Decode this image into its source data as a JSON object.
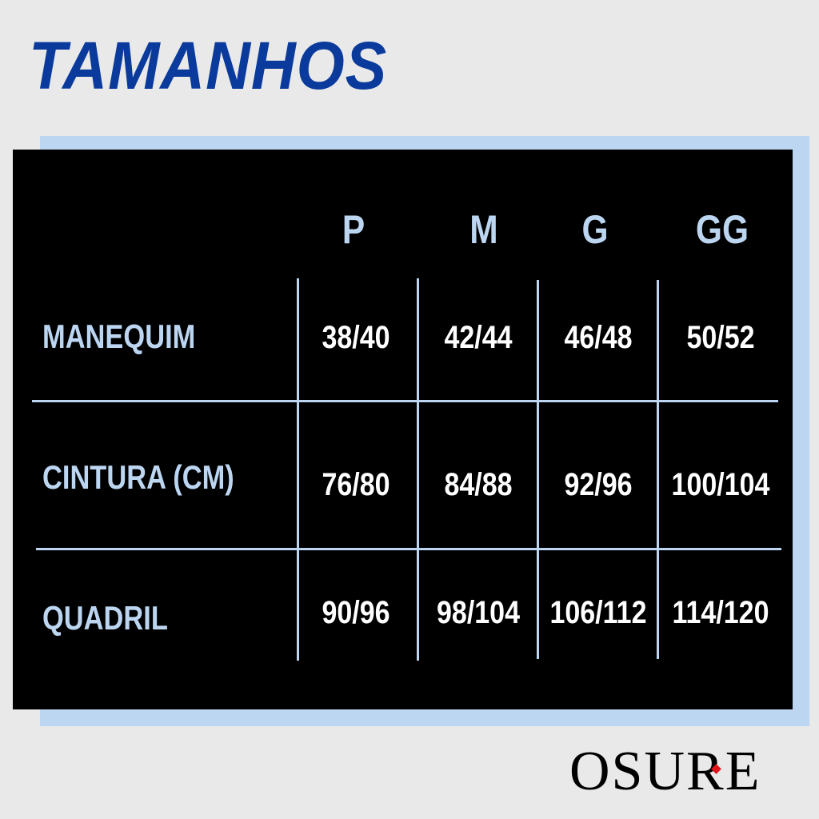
{
  "title": "TAMANHOS",
  "table": {
    "columns": [
      "P",
      "M",
      "G",
      "GG"
    ],
    "rows": [
      {
        "label": "MANEQUIM",
        "values": [
          "38/40",
          "42/44",
          "46/48",
          "50/52"
        ]
      },
      {
        "label": "CINTURA (CM)",
        "values": [
          "76/80",
          "84/88",
          "92/96",
          "100/104"
        ]
      },
      {
        "label": "QUADRIL",
        "values": [
          "90/96",
          "98/104",
          "106/112",
          "114/120"
        ]
      }
    ]
  },
  "brand": "OSURE",
  "colors": {
    "title": "#0a3a9c",
    "accent": "#bcd6f2",
    "board": "#000000",
    "background": "#e9e9e9",
    "logo_diamond": "#e0141b"
  }
}
